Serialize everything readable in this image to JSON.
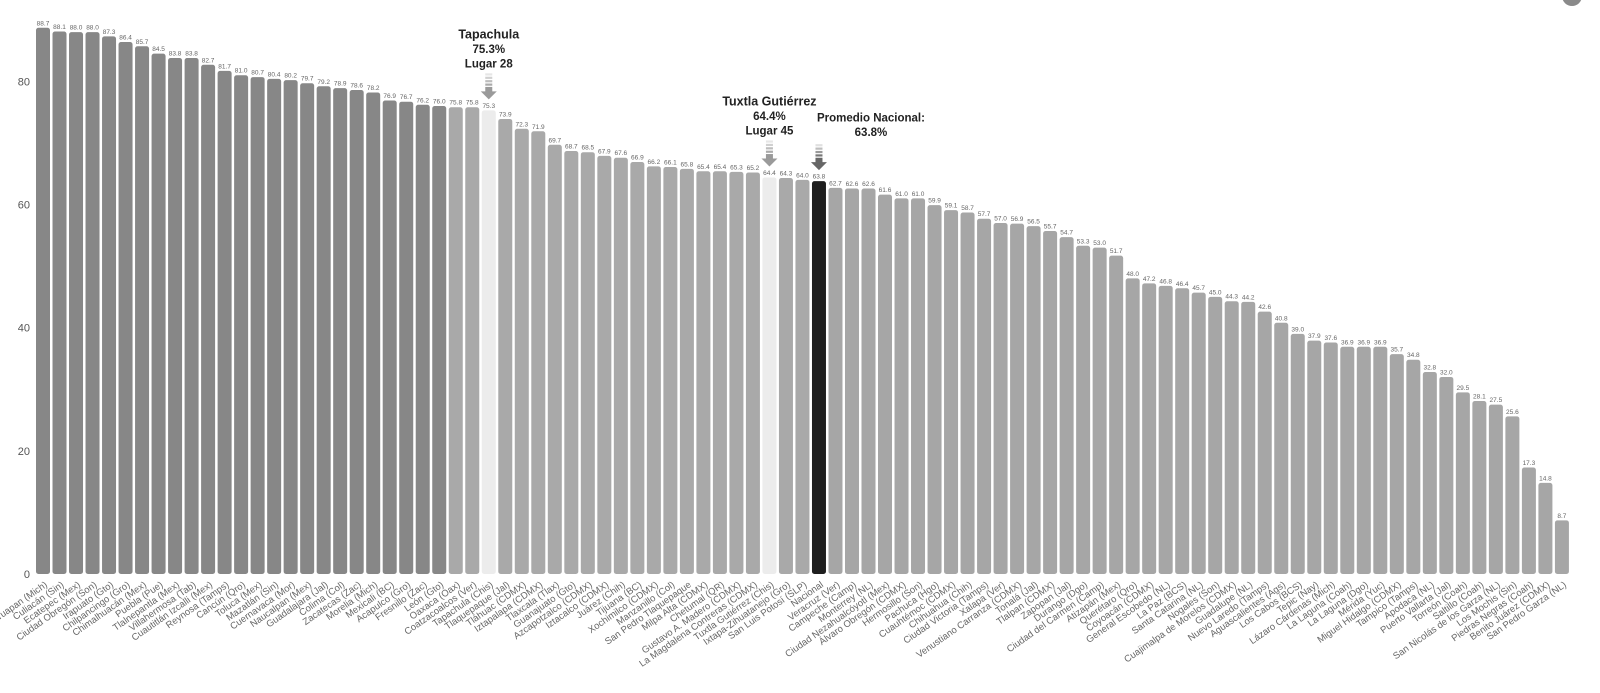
{
  "chart_data": {
    "type": "bar",
    "title": "",
    "xlabel": "",
    "ylabel": "",
    "ylim": [
      0,
      90
    ],
    "yticks": [
      0,
      20,
      40,
      60,
      80
    ],
    "grid": false,
    "categories": [
      "Uruapan (Mich)",
      "Culiacán (Sin)",
      "Ecatepec (Mex)",
      "Ciudad Obregón (Son)",
      "Irapuato (Gto)",
      "Chilpancingo (Gro)",
      "Chimalhuacán (Mex)",
      "Puebla (Pue)",
      "Tlalnepantla (Mex)",
      "Villahermosa (Tab)",
      "Cuautitlán Izcalli (Mex)",
      "Reynosa (Tamps)",
      "Cancún (Qro)",
      "Toluca (Mex)",
      "Mazatlán (Sin)",
      "Cuernavaca (Mor)",
      "Naucalpan (Mex)",
      "Guadalajara (Jal)",
      "Colima (Col)",
      "Zacatecas (Zac)",
      "Morelia (Mich)",
      "Mexicali (BC)",
      "Acapulco (Gro)",
      "Fresnillo (Zac)",
      "León (Gto)",
      "Oaxaca (Oax)",
      "Coatzacoalcos (Ver)",
      "Tapachula (Chis)",
      "Tlaquepaque (Jal)",
      "Tláhuac (CDMX)",
      "Iztapalapa (CDMX)",
      "Tlaxcala (Tlax)",
      "Guanajuato (Gto)",
      "Azcapotzalco (CDMX)",
      "Iztacalco (CDMX)",
      "Juárez (Chih)",
      "Tijuana (BC)",
      "Xochimilco (CDMX)",
      "Manzanillo (Col)",
      "San Pedro Tlaquepaque",
      "Milpa Alta (CDMX)",
      "Chetumal (QR)",
      "Gustavo A. Madero (CDMX)",
      "La Magdalena Contreras (CDMX)",
      "Tuxtla Gutiérrez (Chis)",
      "Ixtapa-Zihuatanejo (Gro)",
      "San Luis Potosí (SLP)",
      "Nacional",
      "Veracruz (Ver)",
      "Campeche (Camp)",
      "Monterrey (NL)",
      "Ciudad Nezahualcóyotl (Mex)",
      "Álvaro Obregón (CDMX)",
      "Hermosillo (Son)",
      "Pachuca (Hgo)",
      "Cuauhtémoc (CDMX)",
      "Chihuahua (Chih)",
      "Ciudad Victoria (Tamps)",
      "Xalapa (Ver)",
      "Venustiano Carranza (CDMX)",
      "Tonalá (Jal)",
      "Tlalpan (CDMX)",
      "Zapopan (Jal)",
      "Durango (Dgo)",
      "Ciudad del Carmen (Camp)",
      "Atizapán (Mex)",
      "Querétaro (Qro)",
      "Coyoacán (CDMX)",
      "General Escobedo (NL)",
      "La Paz (BCS)",
      "Santa Catarina (NL)",
      "Nogales (Son)",
      "Cuajimalpa de Morelos (CDMX)",
      "Guadalupe (NL)",
      "Nuevo Laredo (Tamps)",
      "Aguascalientes (Ags)",
      "Los Cabos (BCS)",
      "Tepic (Nay)",
      "Lázaro Cárdenas (Mich)",
      "La Laguna (Coah)",
      "La Laguna (Dgo)",
      "Mérida (Yuc)",
      "Miguel Hidalgo (CDMX)",
      "Tampico (Tamps)",
      "Apodaca (NL)",
      "Puerto Vallarta (Jal)",
      "Torreón (Coah)",
      "Saltillo (Coah)",
      "San Nicolás de los Garza (NL)",
      "Los Mochis (Sin)",
      "Piedras Negras (Coah)",
      "Benito Juárez (CDMX)",
      "San Pedro Garza (NL)"
    ],
    "values": [
      88.7,
      88.1,
      88.0,
      88.0,
      87.3,
      86.4,
      85.7,
      84.5,
      83.8,
      83.8,
      82.7,
      81.7,
      81.0,
      80.7,
      80.4,
      80.2,
      79.7,
      79.2,
      78.9,
      78.6,
      78.2,
      76.9,
      76.7,
      76.2,
      76.0,
      75.8,
      75.8,
      75.3,
      73.9,
      72.3,
      71.9,
      69.7,
      68.7,
      68.5,
      67.9,
      67.6,
      66.9,
      66.2,
      66.1,
      65.8,
      65.4,
      65.4,
      65.3,
      65.2,
      64.4,
      64.3,
      64.0,
      63.8,
      62.7,
      62.6,
      62.6,
      61.6,
      61.0,
      61.0,
      59.9,
      59.1,
      58.7,
      57.7,
      57.0,
      56.9,
      56.5,
      55.7,
      54.7,
      53.3,
      53.0,
      51.7,
      48.0,
      47.2,
      46.8,
      46.4,
      45.7,
      45.0,
      44.3,
      44.2,
      42.6,
      40.8,
      39.0,
      37.9,
      37.6,
      36.9,
      36.9,
      36.9,
      35.7,
      34.8,
      32.8,
      32.0,
      29.5,
      28.1,
      27.5,
      25.6,
      17.3,
      14.8,
      8.7
    ],
    "value_labels": [
      "88.7",
      "88.1",
      "88.0",
      "88.0",
      "87.3",
      "86.4",
      "85.7",
      "84.5",
      "83.8",
      "83.8",
      "82.7",
      "81.7",
      "81.0",
      "80.7",
      "80.4",
      "80.2",
      "79.7",
      "79.2",
      "78.9",
      "78.6",
      "78.2",
      "76.9",
      "76.7",
      "76.2",
      "76.0",
      "75.8",
      "75.8",
      "75.3",
      "73.9",
      "72.3",
      "71.9",
      "69.7",
      "68.7",
      "68.5",
      "67.9",
      "67.6",
      "66.9",
      "66.2",
      "66.1",
      "65.8",
      "65.4",
      "65.4",
      "65.3",
      "65.2",
      "64.4",
      "64.3",
      "64.0",
      "63.8",
      "62.7",
      "62.6",
      "62.6",
      "61.6",
      "61.0",
      "61.0",
      "59.9",
      "59.1",
      "58.7",
      "57.7",
      "57.0",
      "56.9",
      "56.5",
      "55.7",
      "54.7",
      "53.3",
      "53.0",
      "51.7",
      "48.0",
      "47.2",
      "46.8",
      "46.4",
      "45.7",
      "45.0",
      "44.3",
      "44.2",
      "42.6",
      "40.8",
      "39.0",
      "37.9",
      "37.6",
      "36.9",
      "36.9",
      "36.9",
      "35.7",
      "34.8",
      "32.8",
      "32.0",
      "29.5",
      "28.1",
      "27.5",
      "25.6",
      "17.3",
      "14.8",
      "8.7"
    ],
    "colors": {
      "dark": "#878787",
      "mid": "#a9a9a9",
      "light": "#a6a6a6",
      "highlight": "#ececec",
      "national": "#1e1e1e"
    },
    "color_bands": {
      "dark_until_index": 24,
      "mid_until_index": 46
    },
    "highlight_indices": [
      27,
      44
    ],
    "national_index": 47,
    "annotations": [
      {
        "target_index": 27,
        "lines": [
          "Tapachula",
          "75.3%",
          "Lugar 28"
        ]
      },
      {
        "target_index": 44,
        "lines": [
          "Tuxtla Gutiérrez",
          "64.4%",
          "Lugar 45"
        ]
      },
      {
        "target_index": 47,
        "lines": [
          "Promedio Nacional:",
          "63.8%"
        ]
      }
    ]
  }
}
